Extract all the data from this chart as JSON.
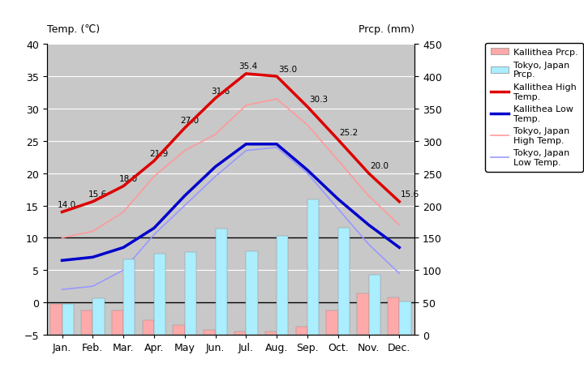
{
  "months": [
    "Jan.",
    "Feb.",
    "Mar.",
    "Apr.",
    "May",
    "Jun.",
    "Jul.",
    "Aug.",
    "Sep.",
    "Oct.",
    "Nov.",
    "Dec."
  ],
  "kallithea_high": [
    14.0,
    15.6,
    18.0,
    21.9,
    27.0,
    31.6,
    35.4,
    35.0,
    30.3,
    25.2,
    20.0,
    15.6
  ],
  "kallithea_low": [
    6.5,
    7.0,
    8.5,
    11.5,
    16.5,
    21.0,
    24.5,
    24.5,
    20.5,
    16.0,
    12.0,
    8.5
  ],
  "tokyo_high": [
    10.0,
    11.0,
    14.0,
    19.5,
    23.5,
    26.0,
    30.5,
    31.5,
    27.5,
    22.0,
    16.5,
    12.0
  ],
  "tokyo_low": [
    2.0,
    2.5,
    5.0,
    10.5,
    15.0,
    19.5,
    23.5,
    24.0,
    20.0,
    14.5,
    9.0,
    4.5
  ],
  "kallithea_prcp_mm": [
    48,
    37,
    37,
    23,
    15,
    7,
    5,
    5,
    12,
    38,
    64,
    58
  ],
  "tokyo_prcp_mm": [
    48,
    56,
    117,
    125,
    128,
    164,
    129,
    153,
    209,
    165,
    93,
    51
  ],
  "temp_min": -5,
  "temp_max": 40,
  "prcp_min": 0,
  "prcp_max": 450,
  "bg_color": "#c8c8c8",
  "kallithea_high_color": "#dd0000",
  "kallithea_low_color": "#0000cc",
  "tokyo_high_color": "#ff9999",
  "tokyo_low_color": "#9999ff",
  "kallithea_prcp_color": "#ffaaaa",
  "tokyo_prcp_color": "#aaeeff",
  "title_left": "Temp. (℃)",
  "title_right": "Prcp. (mm)",
  "annot_kh": [
    0,
    1,
    2,
    3,
    4,
    5,
    6,
    7,
    8,
    9,
    10,
    11
  ]
}
